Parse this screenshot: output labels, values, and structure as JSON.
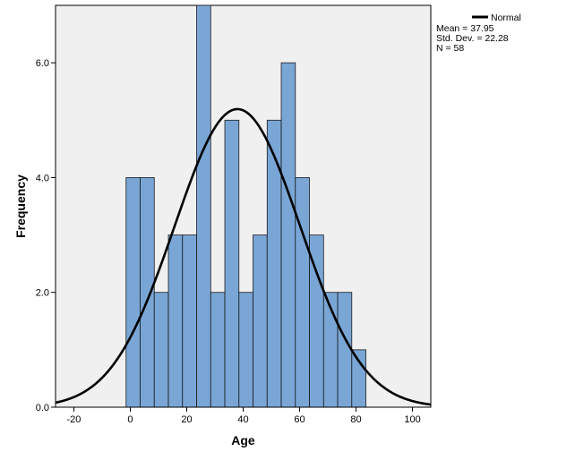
{
  "chart_data": {
    "type": "bar",
    "subtype": "histogram",
    "title": "",
    "xlabel": "Age",
    "ylabel": "Frequency",
    "xlim": [
      -26.5,
      106.5
    ],
    "ylim": [
      0,
      7.0
    ],
    "x_ticks": [
      -20,
      0,
      20,
      40,
      60,
      80,
      100
    ],
    "x_tick_labels": [
      "-20",
      "0",
      "20",
      "40",
      "60",
      "80",
      "100"
    ],
    "y_ticks": [
      0,
      2,
      4,
      6
    ],
    "y_tick_labels": [
      "0.0",
      "2.0",
      "4.0",
      "6.0"
    ],
    "bin_width": 5,
    "bins": [
      {
        "start": -1.5,
        "end": 3.5,
        "count": 4
      },
      {
        "start": 3.5,
        "end": 8.5,
        "count": 4
      },
      {
        "start": 8.5,
        "end": 13.5,
        "count": 2
      },
      {
        "start": 13.5,
        "end": 18.5,
        "count": 3
      },
      {
        "start": 18.5,
        "end": 23.5,
        "count": 3
      },
      {
        "start": 23.5,
        "end": 28.5,
        "count": 7
      },
      {
        "start": 28.5,
        "end": 33.5,
        "count": 2
      },
      {
        "start": 33.5,
        "end": 38.5,
        "count": 5
      },
      {
        "start": 38.5,
        "end": 43.5,
        "count": 2
      },
      {
        "start": 43.5,
        "end": 48.5,
        "count": 3
      },
      {
        "start": 48.5,
        "end": 53.5,
        "count": 5
      },
      {
        "start": 53.5,
        "end": 58.5,
        "count": 6
      },
      {
        "start": 58.5,
        "end": 63.5,
        "count": 4
      },
      {
        "start": 63.5,
        "end": 68.5,
        "count": 3
      },
      {
        "start": 68.5,
        "end": 73.5,
        "count": 2
      },
      {
        "start": 73.5,
        "end": 78.5,
        "count": 2
      },
      {
        "start": 78.5,
        "end": 83.5,
        "count": 1
      }
    ],
    "normal_curve": {
      "mean": 37.95,
      "sd": 22.28,
      "n": 58
    },
    "legend": {
      "entries": [
        "Normal"
      ],
      "stats": [
        "Mean = 37.95",
        "Std. Dev. = 22.28",
        "N = 58"
      ],
      "placement": "top-right, outside plot"
    },
    "grid": false,
    "colors": {
      "bar_fill": "#7aa6d6",
      "bar_stroke": "#1a1a1a",
      "plot_background": "#f0f0f0",
      "curve": "#000000"
    }
  }
}
